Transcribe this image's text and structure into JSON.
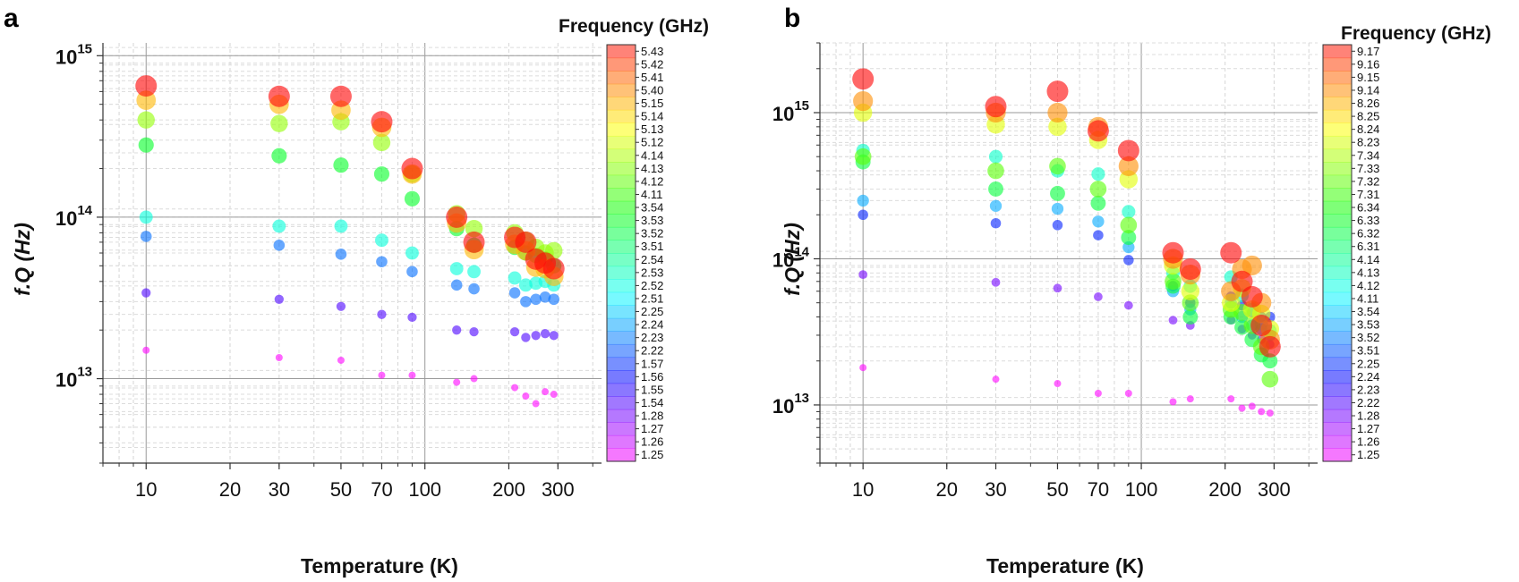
{
  "chart_data": [
    {
      "panel": "a",
      "type": "scatter",
      "title": "",
      "xlabel": "Temperature (K)",
      "ylabel": "f.Q (Hz)",
      "xscale": "log",
      "yscale": "log",
      "xlim": [
        7,
        430
      ],
      "ylim": [
        3000000000000.0,
        1200000000000000.0
      ],
      "xticks": [
        10,
        20,
        30,
        50,
        70,
        100,
        200,
        300
      ],
      "xtick_labels": [
        "10",
        "20",
        "30",
        "50",
        "70",
        "100",
        "200",
        "300"
      ],
      "ytick_mantissa": "10",
      "yticks": [
        {
          "value": 10000000000000.0,
          "exp": "13"
        },
        {
          "value": 100000000000000.0,
          "exp": "14"
        },
        {
          "value": 1000000000000000.0,
          "exp": "15"
        }
      ],
      "grid": true,
      "colorbar_title": "Frequency (GHz)",
      "colorbar_labels": [
        "5.43",
        "5.42",
        "5.41",
        "5.40",
        "5.15",
        "5.14",
        "5.13",
        "5.12",
        "4.14",
        "4.13",
        "4.12",
        "4.11",
        "3.54",
        "3.53",
        "3.52",
        "3.51",
        "2.54",
        "2.53",
        "2.52",
        "2.51",
        "2.25",
        "2.24",
        "2.23",
        "2.22",
        "1.57",
        "1.56",
        "1.55",
        "1.54",
        "1.28",
        "1.27",
        "1.26",
        "1.25"
      ],
      "temperatures": [
        10,
        30,
        50,
        70,
        90,
        130,
        150,
        210,
        230,
        250,
        270,
        290
      ],
      "series": [
        {
          "band": 6,
          "values": [
            650000000000000.0,
            560000000000000.0,
            560000000000000.0,
            390000000000000.0,
            200000000000000.0,
            100000000000000.0,
            70000000000000.0,
            75000000000000.0,
            70000000000000.0,
            55000000000000.0,
            52000000000000.0,
            48000000000000.0
          ]
        },
        {
          "band": 5,
          "values": [
            530000000000000.0,
            500000000000000.0,
            460000000000000.0,
            360000000000000.0,
            185000000000000.0,
            92000000000000.0,
            63000000000000.0,
            68000000000000.0,
            62000000000000.0,
            49000000000000.0,
            48000000000000.0,
            43000000000000.0
          ]
        },
        {
          "band": 4,
          "values": [
            400000000000000.0,
            380000000000000.0,
            390000000000000.0,
            290000000000000.0,
            185000000000000.0,
            105000000000000.0,
            85000000000000.0,
            80000000000000.0,
            72000000000000.0,
            65000000000000.0,
            60000000000000.0,
            62000000000000.0
          ]
        },
        {
          "band": 3,
          "values": [
            280000000000000.0,
            240000000000000.0,
            210000000000000.0,
            185000000000000.0,
            130000000000000.0,
            85000000000000.0,
            67000000000000.0,
            65000000000000.0,
            60000000000000.0,
            58000000000000.0,
            55000000000000.0,
            50000000000000.0
          ]
        },
        {
          "band": 2,
          "values": [
            100000000000000.0,
            88000000000000.0,
            88000000000000.0,
            72000000000000.0,
            60000000000000.0,
            48000000000000.0,
            46000000000000.0,
            42000000000000.0,
            38000000000000.0,
            39000000000000.0,
            40000000000000.0,
            38000000000000.0
          ]
        },
        {
          "band": 1,
          "values": [
            76000000000000.0,
            67000000000000.0,
            59000000000000.0,
            53000000000000.0,
            46000000000000.0,
            38000000000000.0,
            36000000000000.0,
            34000000000000.0,
            30000000000000.0,
            31000000000000.0,
            32000000000000.0,
            31000000000000.0
          ]
        },
        {
          "band": 0,
          "values": [
            34000000000000.0,
            31000000000000.0,
            28000000000000.0,
            25000000000000.0,
            24000000000000.0,
            20000000000000.0,
            19500000000000.0,
            19500000000000.0,
            18000000000000.0,
            18500000000000.0,
            19000000000000.0,
            18500000000000.0
          ]
        },
        {
          "band": -1,
          "values": [
            15000000000000.0,
            13500000000000.0,
            13000000000000.0,
            10500000000000.0,
            10500000000000.0,
            9500000000000.0,
            10000000000000.0,
            8800000000000.0,
            7800000000000.0,
            7000000000000.0,
            8300000000000.0,
            8000000000000.0
          ]
        }
      ]
    },
    {
      "panel": "b",
      "type": "scatter",
      "title": "",
      "xlabel": "Temperature (K)",
      "ylabel": "f.Q (Hz)",
      "xscale": "log",
      "yscale": "log",
      "xlim": [
        7,
        430
      ],
      "ylim": [
        4000000000000.0,
        3000000000000000.0
      ],
      "xticks": [
        10,
        20,
        30,
        50,
        70,
        100,
        200,
        300
      ],
      "xtick_labels": [
        "10",
        "20",
        "30",
        "50",
        "70",
        "100",
        "200",
        "300"
      ],
      "ytick_mantissa": "10",
      "yticks": [
        {
          "value": 10000000000000.0,
          "exp": "13"
        },
        {
          "value": 100000000000000.0,
          "exp": "14"
        },
        {
          "value": 1000000000000000.0,
          "exp": "15"
        }
      ],
      "grid": true,
      "colorbar_title": "Frequency (GHz)",
      "colorbar_labels": [
        "9.17",
        "9.16",
        "9.15",
        "9.14",
        "8.26",
        "8.25",
        "8.24",
        "8.23",
        "7.34",
        "7.33",
        "7.32",
        "7.31",
        "6.34",
        "6.33",
        "6.32",
        "6.31",
        "4.14",
        "4.13",
        "4.12",
        "4.11",
        "3.54",
        "3.53",
        "3.52",
        "3.51",
        "2.25",
        "2.24",
        "2.23",
        "2.22",
        "1.28",
        "1.27",
        "1.26",
        "1.25"
      ],
      "temperatures": [
        10,
        30,
        50,
        70,
        90,
        130,
        150,
        210,
        230,
        250,
        270,
        290
      ],
      "series": [
        {
          "band": 7,
          "values": [
            1700000000000000.0,
            1100000000000000.0,
            1400000000000000.0,
            750000000000000.0,
            550000000000000.0,
            110000000000000.0,
            85000000000000.0,
            110000000000000.0,
            70000000000000.0,
            55000000000000.0,
            35000000000000.0,
            25000000000000.0
          ]
        },
        {
          "band": 6,
          "values": [
            1200000000000000.0,
            1000000000000000.0,
            1000000000000000.0,
            800000000000000.0,
            430000000000000.0,
            100000000000000.0,
            78000000000000.0,
            60000000000000.0,
            85000000000000.0,
            90000000000000.0,
            50000000000000.0,
            28000000000000.0
          ]
        },
        {
          "band": 5,
          "values": [
            1000000000000000.0,
            830000000000000.0,
            800000000000000.0,
            650000000000000.0,
            350000000000000.0,
            90000000000000.0,
            60000000000000.0,
            50000000000000.0,
            63000000000000.0,
            45000000000000.0,
            42000000000000.0,
            33000000000000.0
          ]
        },
        {
          "band": 4,
          "values": [
            500000000000000.0,
            400000000000000.0,
            430000000000000.0,
            300000000000000.0,
            170000000000000.0,
            70000000000000.0,
            50000000000000.0,
            45000000000000.0,
            43000000000000.0,
            35000000000000.0,
            25000000000000.0,
            15000000000000.0
          ]
        },
        {
          "band": 3,
          "values": [
            460000000000000.0,
            300000000000000.0,
            280000000000000.0,
            240000000000000.0,
            140000000000000.0,
            65000000000000.0,
            40000000000000.0,
            40000000000000.0,
            34000000000000.0,
            28000000000000.0,
            22000000000000.0,
            20000000000000.0
          ]
        },
        {
          "band": 2,
          "values": [
            550000000000000.0,
            500000000000000.0,
            400000000000000.0,
            380000000000000.0,
            210000000000000.0,
            80000000000000.0,
            65000000000000.0,
            75000000000000.0,
            56000000000000.0,
            45000000000000.0,
            36000000000000.0,
            32000000000000.0
          ]
        },
        {
          "band": 1,
          "values": [
            250000000000000.0,
            230000000000000.0,
            220000000000000.0,
            180000000000000.0,
            120000000000000.0,
            60000000000000.0,
            45000000000000.0,
            50000000000000.0,
            40000000000000.0,
            35000000000000.0,
            33000000000000.0,
            30000000000000.0
          ]
        },
        {
          "band": 0,
          "values": [
            200000000000000.0,
            175000000000000.0,
            170000000000000.0,
            145000000000000.0,
            98000000000000.0,
            65000000000000.0,
            50000000000000.0,
            55000000000000.0,
            48000000000000.0,
            43000000000000.0,
            40000000000000.0,
            40000000000000.0
          ]
        },
        {
          "band": -1,
          "values": [
            78000000000000.0,
            69000000000000.0,
            63000000000000.0,
            55000000000000.0,
            48000000000000.0,
            38000000000000.0,
            35000000000000.0,
            38000000000000.0,
            33000000000000.0,
            30000000000000.0,
            28000000000000.0,
            26000000000000.0
          ]
        },
        {
          "band": -2,
          "values": [
            18000000000000.0,
            15000000000000.0,
            14000000000000.0,
            12000000000000.0,
            12000000000000.0,
            10500000000000.0,
            11000000000000.0,
            11000000000000.0,
            9500000000000.0,
            9800000000000.0,
            9000000000000.0,
            8800000000000.0
          ]
        }
      ]
    }
  ]
}
